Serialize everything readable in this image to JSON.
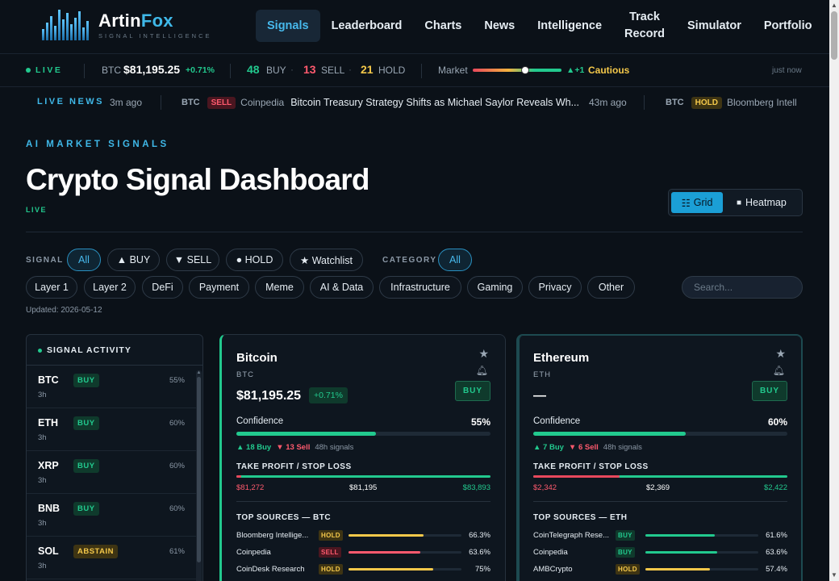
{
  "brand": {
    "name_main": "Artin",
    "name_accent": "Fox",
    "tagline": "SIGNAL INTELLIGENCE"
  },
  "nav": {
    "items": [
      {
        "label": "Signals",
        "active": true
      },
      {
        "label": "Leaderboard",
        "active": false
      },
      {
        "label": "Charts",
        "active": false
      },
      {
        "label": "News",
        "active": false
      },
      {
        "label": "Intelligence",
        "active": false
      },
      {
        "label": "Track\nRecord",
        "active": false
      },
      {
        "label": "Simulator",
        "active": false
      },
      {
        "label": "Portfolio",
        "active": false
      }
    ]
  },
  "ticker": {
    "live_label": "LIVE",
    "coin": "BTC",
    "price": "$81,195.25",
    "change": "+0.71%",
    "buy_count": "48",
    "buy_label": "BUY",
    "sell_count": "13",
    "sell_label": "SELL",
    "hold_count": "21",
    "hold_label": "HOLD",
    "market_label": "Market",
    "market_level": 0.59,
    "market_change": "▲+1",
    "market_state": "Cautious",
    "updated": "just now"
  },
  "news": {
    "label": "LIVE NEWS",
    "items": [
      {
        "time": "3m ago"
      },
      {
        "coin": "BTC",
        "signal": "SELL",
        "source": "Coinpedia",
        "headline": "Bitcoin Treasury Strategy Shifts as Michael Saylor Reveals Wh...",
        "time": "43m ago"
      },
      {
        "coin": "BTC",
        "signal": "HOLD",
        "source": "Bloomberg Intell"
      }
    ]
  },
  "header": {
    "eyebrow": "AI MARKET SIGNALS",
    "title": "Crypto Signal Dashboard",
    "status": "LIVE",
    "view_grid": "Grid",
    "view_heatmap": "Heatmap"
  },
  "filters": {
    "signal_label": "SIGNAL",
    "signal_options": [
      "All",
      "▲ BUY",
      "▼ SELL",
      "● HOLD",
      "★ Watchlist"
    ],
    "category_label": "CATEGORY",
    "category_all": "All",
    "categories": [
      "Layer 1",
      "Layer 2",
      "DeFi",
      "Payment",
      "Meme",
      "AI & Data",
      "Infrastructure",
      "Gaming",
      "Privacy",
      "Other"
    ],
    "search_placeholder": "Search...",
    "updated": "Updated: 2026-05-12"
  },
  "activity": {
    "title": "SIGNAL ACTIVITY",
    "rows": [
      {
        "coin": "BTC",
        "signal": "BUY",
        "pct": "55%",
        "time": "3h"
      },
      {
        "coin": "ETH",
        "signal": "BUY",
        "pct": "60%",
        "time": "3h"
      },
      {
        "coin": "XRP",
        "signal": "BUY",
        "pct": "60%",
        "time": "3h"
      },
      {
        "coin": "BNB",
        "signal": "BUY",
        "pct": "60%",
        "time": "3h"
      },
      {
        "coin": "SOL",
        "signal": "ABSTAIN",
        "pct": "61%",
        "time": "3h"
      }
    ]
  },
  "cards": [
    {
      "name": "Bitcoin",
      "symbol": "BTC",
      "price": "$81,195.25",
      "change": "+0.71%",
      "signal": "BUY",
      "confidence_label": "Confidence",
      "confidence": "55%",
      "confidence_value": 0.55,
      "buy_votes": "▲ 18 Buy",
      "sell_votes": "▼ 13 Sell",
      "window": "48h signals",
      "tp_label": "TAKE PROFIT / STOP LOSS",
      "stop_loss": "$81,272",
      "current": "$81,195",
      "take_profit": "$83,893",
      "sources_label": "TOP SOURCES — BTC",
      "sources": [
        {
          "name": "Bloomberg Intellige...",
          "signal": "HOLD",
          "pct": "66.3%",
          "value": 0.663
        },
        {
          "name": "Coinpedia",
          "signal": "SELL",
          "pct": "63.6%",
          "value": 0.636
        },
        {
          "name": "CoinDesk Research",
          "signal": "HOLD",
          "pct": "75%",
          "value": 0.75
        }
      ]
    },
    {
      "name": "Ethereum",
      "symbol": "ETH",
      "price": "—",
      "change": "",
      "signal": "BUY",
      "confidence_label": "Confidence",
      "confidence": "60%",
      "confidence_value": 0.6,
      "buy_votes": "▲ 7 Buy",
      "sell_votes": "▼ 6 Sell",
      "window": "48h signals",
      "tp_label": "TAKE PROFIT / STOP LOSS",
      "stop_loss": "$2,342",
      "current": "$2,369",
      "take_profit": "$2,422",
      "sources_label": "TOP SOURCES — ETH",
      "sources": [
        {
          "name": "CoinTelegraph Rese...",
          "signal": "BUY",
          "pct": "61.6%",
          "value": 0.616
        },
        {
          "name": "Coinpedia",
          "signal": "BUY",
          "pct": "63.6%",
          "value": 0.636
        },
        {
          "name": "AMBCrypto",
          "signal": "HOLD",
          "pct": "57.4%",
          "value": 0.574
        }
      ]
    }
  ]
}
